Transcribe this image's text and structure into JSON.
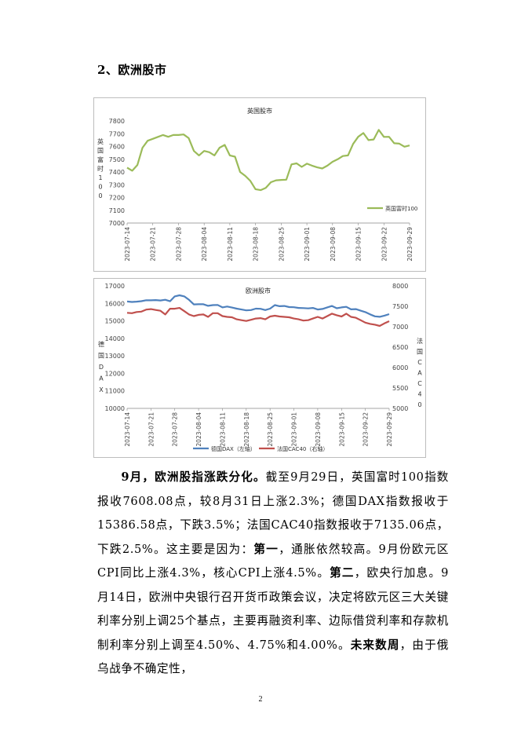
{
  "heading": "2、欧洲股市",
  "chart_data": [
    {
      "type": "line",
      "title": "英国股市",
      "ylabel": "英国富时100",
      "ylim": [
        7000,
        7800
      ],
      "yticks": [
        7000,
        7100,
        7200,
        7300,
        7400,
        7500,
        7600,
        7700,
        7800
      ],
      "xticks": [
        "2023-07-14",
        "2023-07-21",
        "2023-07-28",
        "2023-08-04",
        "2023-08-11",
        "2023-08-18",
        "2023-08-25",
        "2023-09-01",
        "2023-09-08",
        "2023-09-15",
        "2023-09-22",
        "2023-09-29"
      ],
      "legend": "bottom-right",
      "colors": {
        "series": "#9bbb59"
      },
      "series": [
        {
          "name": "英国富时100",
          "values": [
            7434,
            7410,
            7455,
            7590,
            7645,
            7660,
            7675,
            7690,
            7676,
            7690,
            7690,
            7694,
            7665,
            7565,
            7530,
            7565,
            7555,
            7530,
            7590,
            7612,
            7530,
            7520,
            7400,
            7370,
            7330,
            7265,
            7258,
            7275,
            7320,
            7335,
            7338,
            7340,
            7460,
            7468,
            7440,
            7465,
            7450,
            7436,
            7428,
            7450,
            7480,
            7500,
            7525,
            7530,
            7620,
            7676,
            7705,
            7650,
            7655,
            7730,
            7675,
            7676,
            7625,
            7622,
            7598,
            7608
          ]
        }
      ]
    },
    {
      "type": "line",
      "title": "欧洲股市",
      "ylabel": "德国DAX",
      "y2label": "法国CAC40",
      "ylim": [
        10000,
        17000
      ],
      "y2lim": [
        5000,
        8000
      ],
      "yticks": [
        10000,
        11000,
        12000,
        13000,
        14000,
        15000,
        16000,
        17000
      ],
      "y2ticks": [
        5000,
        5500,
        6000,
        6500,
        7000,
        7500,
        8000
      ],
      "xticks": [
        "2023-07-14",
        "2023-07-21",
        "2023-07-28",
        "2023-08-04",
        "2023-08-11",
        "2023-08-18",
        "2023-08-25",
        "2023-09-01",
        "2023-09-08",
        "2023-09-15",
        "2023-09-22",
        "2023-09-29"
      ],
      "legend": "bottom",
      "colors": {
        "dax": "#4f81bd",
        "cac": "#c0504d"
      },
      "series": [
        {
          "name": "德国DAX（左轴）",
          "values": [
            16105,
            16080,
            16100,
            16125,
            16180,
            16175,
            16190,
            16165,
            16205,
            16120,
            16400,
            16460,
            16400,
            16200,
            15940,
            15950,
            15950,
            15860,
            15900,
            15910,
            15770,
            15820,
            15760,
            15700,
            15650,
            15600,
            15620,
            15700,
            15690,
            15620,
            15700,
            15900,
            15840,
            15850,
            15790,
            15780,
            15740,
            15730,
            15710,
            15740,
            15650,
            15680,
            15770,
            15850,
            15720,
            15770,
            15800,
            15660,
            15670,
            15580,
            15500,
            15370,
            15260,
            15230,
            15300,
            15386
          ]
        },
        {
          "name": "法国CAC40（右轴）",
          "values": [
            7340,
            7330,
            7360,
            7370,
            7420,
            7430,
            7410,
            7390,
            7300,
            7440,
            7440,
            7460,
            7380,
            7300,
            7260,
            7290,
            7300,
            7240,
            7330,
            7330,
            7260,
            7240,
            7230,
            7180,
            7160,
            7140,
            7170,
            7200,
            7210,
            7180,
            7250,
            7270,
            7250,
            7240,
            7230,
            7200,
            7180,
            7150,
            7160,
            7200,
            7240,
            7200,
            7260,
            7320,
            7280,
            7250,
            7320,
            7240,
            7220,
            7160,
            7100,
            7070,
            7050,
            7020,
            7080,
            7135
          ]
        }
      ]
    }
  ],
  "paragraph": {
    "p1_bold": "9月，欧洲股指涨跌分化。",
    "p1": "截至9月29日，英国富时100指数报收7608.08点，较8月31日上涨2.3%；德国DAX指数报收于15386.58点，下跌3.5%；法国CAC40指数报收于7135.06点，下跌2.5%。这主要是因为：",
    "p2_bold": "第一",
    "p2": "，通胀依然较高。9月份欧元区CPI同比上涨4.3%，核心CPI上涨4.5%。",
    "p3_bold": "第二",
    "p3": "，欧央行加息。9月14日，欧洲中央银行召开货币政策会议，决定将欧元区三大关键利率分别上调25个基点，主要再融资利率、边际借贷利率和存款机制利率分别上调至4.50%、4.75%和4.00%。",
    "p4_bold": "未来数周",
    "p4": "，由于俄乌战争不确定性，"
  },
  "page_number": "2"
}
